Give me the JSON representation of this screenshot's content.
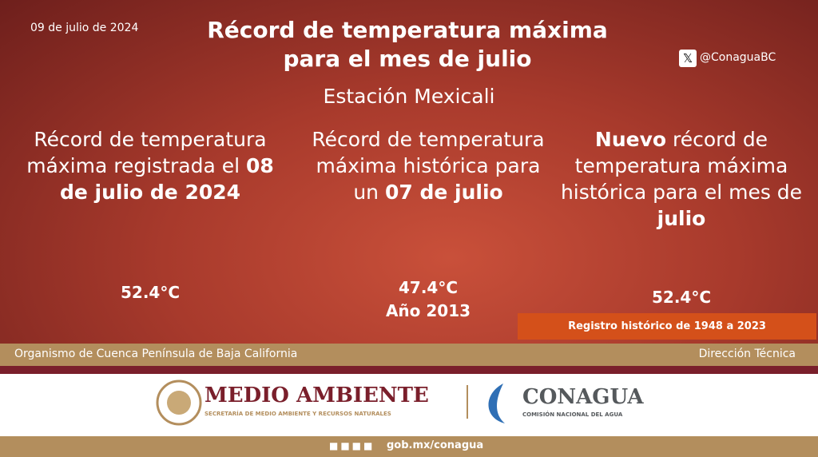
{
  "header": {
    "date": "09 de julio de 2024",
    "title": "Récord de temperatura máxima para el mes de julio",
    "handle": "@ConaguaBC",
    "subtitle": "Estación Mexicali"
  },
  "columns": [
    {
      "text": [
        {
          "text": "Récord de temperatura máxima registrada el ",
          "bold": false
        },
        {
          "text": "08 de julio de 2024",
          "bold": true
        }
      ],
      "values": [
        "52.4°C"
      ]
    },
    {
      "text": [
        {
          "text": "Récord de temperatura máxima histórica para un ",
          "bold": false
        },
        {
          "text": "07 de julio",
          "bold": true
        }
      ],
      "values": [
        "47.4°C",
        "Año 2013"
      ]
    },
    {
      "text": [
        {
          "text": "Nuevo",
          "bold": true
        },
        {
          "text": " récord de temperatura máxima histórica para el mes de ",
          "bold": false
        },
        {
          "text": "julio",
          "bold": true
        }
      ],
      "values": [
        "52.4°C"
      ]
    }
  ],
  "badge": "Registro histórico de 1948 a 2023",
  "band": {
    "left": "Organismo de Cuenca Península de Baja California",
    "right": "Dirección Técnica"
  },
  "logos": {
    "semarnat": "MEDIO AMBIENTE",
    "semarnat_sub": "SECRETARÍA DE MEDIO AMBIENTE Y RECURSOS NATURALES",
    "conagua": "CONAGUA",
    "conagua_sub": "COMISIÓN NACIONAL DEL AGUA"
  },
  "footer": {
    "url": "gob.mx/conagua"
  }
}
